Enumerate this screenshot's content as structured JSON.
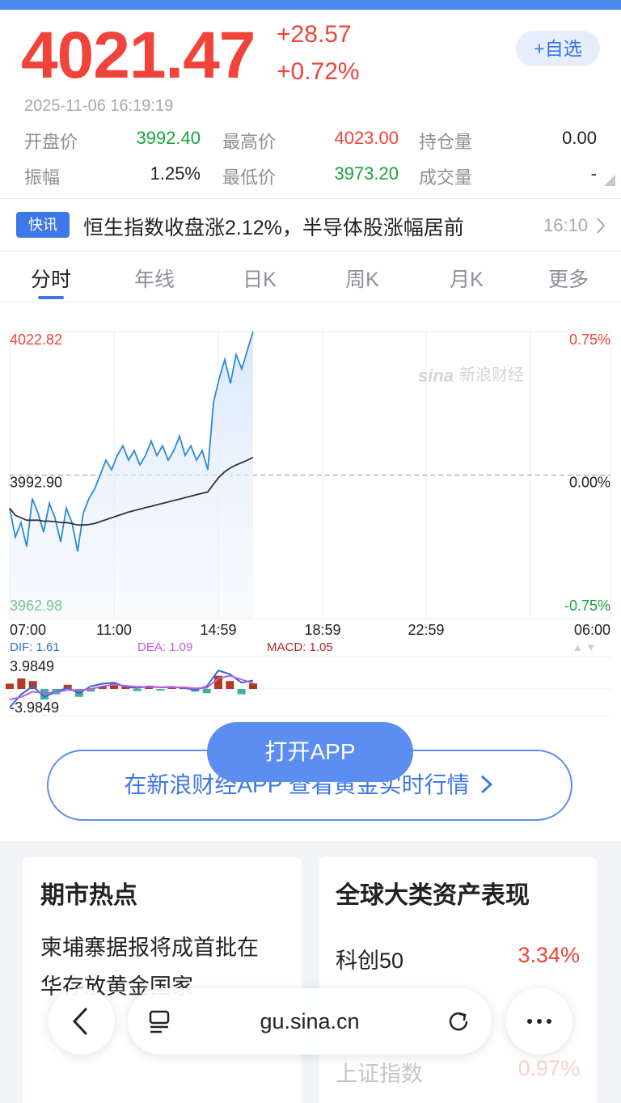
{
  "quote": {
    "price": "4021.47",
    "change": "+28.57",
    "change_pct": "+0.72%",
    "add_button": "+自选",
    "datetime": "2025-11-06  16:19:19",
    "stats": [
      [
        {
          "label": "开盘价",
          "value": "3992.40",
          "color": "#1aa33d"
        },
        {
          "label": "最高价",
          "value": "4023.00",
          "color": "#f0433a"
        },
        {
          "label": "持仓量",
          "value": "0.00",
          "color": "#222222"
        }
      ],
      [
        {
          "label": "振幅",
          "value": "1.25%",
          "color": "#222222"
        },
        {
          "label": "最低价",
          "value": "3973.20",
          "color": "#1aa33d"
        },
        {
          "label": "成交量",
          "value": "-",
          "color": "#222222"
        }
      ]
    ]
  },
  "news": {
    "badge": "快讯",
    "text": "恒生指数收盘涨2.12%，半导体股涨幅居前",
    "time": "16:10"
  },
  "tabs": {
    "items": [
      "分时",
      "年线",
      "日K",
      "周K",
      "月K",
      "更多"
    ],
    "active": 0
  },
  "chart": {
    "watermark": [
      "sina",
      "新浪财经"
    ],
    "ylim": [
      3962.98,
      4022.82
    ],
    "yticks": [
      4022.82,
      {
        "value": 3992.9,
        "label": "3992.90"
      },
      3962.98
    ],
    "ytick_colors": [
      "#f0433a",
      "#222222",
      "#1aa33d"
    ],
    "pct_labels": [
      "0.75%",
      "0.00%",
      "-0.75%"
    ],
    "x_labels": [
      "07:00",
      "11:00",
      "14:59",
      "18:59",
      "22:59",
      "06:00"
    ],
    "price": [
      3986,
      3980,
      3983,
      3978,
      3988,
      3985,
      3981,
      3987,
      3984,
      3979,
      3986,
      3983,
      3977,
      3985,
      3988,
      3990,
      3993,
      3996,
      3994,
      3997,
      3999,
      3996,
      3998,
      3995,
      3997,
      4000,
      3997,
      3999,
      3996,
      3998,
      4001,
      3997,
      3999,
      3996,
      3998,
      3994,
      4008,
      4013,
      4017,
      4012,
      4018,
      4015,
      4019,
      4022.8
    ],
    "average": [
      3986,
      3984.5,
      3984,
      3983.5,
      3983.5,
      3983.5,
      3983.3,
      3983.3,
      3983.2,
      3983,
      3983,
      3982.8,
      3982.5,
      3982.5,
      3982.6,
      3982.8,
      3983.2,
      3983.6,
      3984,
      3984.4,
      3984.8,
      3985.2,
      3985.5,
      3985.8,
      3986.1,
      3986.4,
      3986.7,
      3987,
      3987.3,
      3987.6,
      3987.9,
      3988.2,
      3988.5,
      3988.8,
      3989.1,
      3989.4,
      3991,
      3992.5,
      3993.6,
      3994.4,
      3995,
      3995.5,
      3996,
      3996.6
    ],
    "macd": {
      "dif_label": "DIF: 1.61",
      "dea_label": "DEA: 1.09",
      "macd_label": "MACD: 1.05",
      "yticks": [
        3.9849,
        -3.9849
      ],
      "hist": [
        1,
        2,
        1.5,
        -2,
        -1,
        0.8,
        -1.5,
        -0.5,
        0.5,
        1,
        0.6,
        -0.4,
        0.3,
        -0.3,
        0.2,
        0.4,
        -0.5,
        -0.8,
        2.5,
        1.5,
        -1,
        1.05
      ],
      "dif": [
        -3.5,
        -1,
        0.5,
        -1.5,
        -0.5,
        0.2,
        -0.8,
        0.5,
        1,
        1.2,
        0.4,
        0.2,
        0.5,
        0.3,
        0.4,
        0.2,
        -0.2,
        0.5,
        3.5,
        2.8,
        1.2,
        1.61
      ],
      "dea": [
        -2,
        -1.5,
        -0.5,
        -0.8,
        -0.6,
        -0.2,
        -0.3,
        0,
        0.5,
        0.8,
        0.6,
        0.4,
        0.4,
        0.3,
        0.3,
        0.3,
        0.1,
        0.2,
        2,
        2.5,
        1.8,
        1.09
      ]
    }
  },
  "banner": {
    "open_app": "打开APP",
    "text": "在新浪财经APP 查看黄金实时行情"
  },
  "cards": {
    "hot": {
      "title": "期市热点",
      "lines": [
        "柬埔寨据报将成首批在",
        "华存放黄金国家"
      ]
    },
    "assets": {
      "title": "全球大类资产表现",
      "rows": [
        {
          "name": "科创50",
          "value": "3.34%"
        },
        {
          "name": "上证指数",
          "value": "0.97%"
        }
      ]
    }
  },
  "toolbar": {
    "url": "gu.sina.cn"
  }
}
